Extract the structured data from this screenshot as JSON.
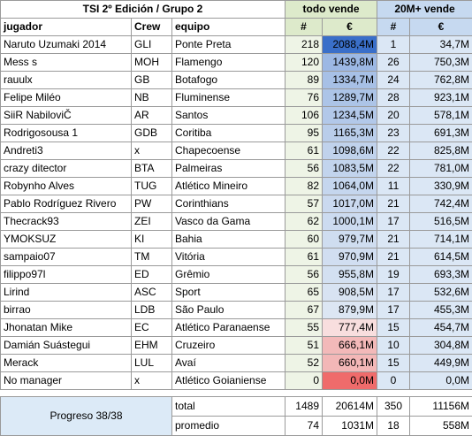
{
  "header": {
    "title": "TSI 2º Edición / Grupo 2",
    "group_todo": "todo vende",
    "group_20m": "20M+ vende",
    "col_jugador": "jugador",
    "col_crew": "Crew",
    "col_equipo": "equipo",
    "col_hash": "#",
    "col_euro": "€"
  },
  "rows": [
    {
      "jugador": "Naruto Uzumaki 2014",
      "crew": "GLI",
      "equipo": "Ponte Preta",
      "count": "218",
      "total": "2088,4M",
      "n20": "1",
      "v20": "34,7M",
      "color": "#3a6fc9"
    },
    {
      "jugador": "Mess s",
      "crew": "MOH",
      "equipo": "Flamengo",
      "count": "120",
      "total": "1439,8M",
      "n20": "26",
      "v20": "750,3M",
      "color": "#9cb8e4"
    },
    {
      "jugador": "rauulx",
      "crew": "GB",
      "equipo": "Botafogo",
      "count": "89",
      "total": "1334,7M",
      "n20": "24",
      "v20": "762,8M",
      "color": "#a7c0e6"
    },
    {
      "jugador": "Felipe Miléo",
      "crew": "NB",
      "equipo": "Fluminense",
      "count": "76",
      "total": "1289,7M",
      "n20": "28",
      "v20": "923,1M",
      "color": "#acc4e7"
    },
    {
      "jugador": "SiiR NabiloviČ",
      "crew": "AR",
      "equipo": "Santos",
      "count": "106",
      "total": "1234,5M",
      "n20": "20",
      "v20": "578,1M",
      "color": "#b2c8e9"
    },
    {
      "jugador": "Rodrigosousa 1",
      "crew": "GDB",
      "equipo": "Coritiba",
      "count": "95",
      "total": "1165,3M",
      "n20": "23",
      "v20": "691,3M",
      "color": "#b9cdea"
    },
    {
      "jugador": "Andreti3",
      "crew": "x",
      "equipo": "Chapecoense",
      "count": "61",
      "total": "1098,6M",
      "n20": "22",
      "v20": "825,8M",
      "color": "#c0d2ec"
    },
    {
      "jugador": "crazy ditector",
      "crew": "BTA",
      "equipo": "Palmeiras",
      "count": "56",
      "total": "1083,5M",
      "n20": "22",
      "v20": "781,0M",
      "color": "#c2d4ed"
    },
    {
      "jugador": "Robynho Alves",
      "crew": "TUG",
      "equipo": "Atlético Mineiro",
      "count": "82",
      "total": "1064,0M",
      "n20": "11",
      "v20": "330,9M",
      "color": "#c5d6ee"
    },
    {
      "jugador": "Pablo Rodríguez Rivero",
      "crew": "PW",
      "equipo": "Corinthians",
      "count": "57",
      "total": "1017,0M",
      "n20": "21",
      "v20": "742,4M",
      "color": "#cad9ef"
    },
    {
      "jugador": "Thecrack93",
      "crew": "ZEI",
      "equipo": "Vasco da Gama",
      "count": "62",
      "total": "1000,1M",
      "n20": "17",
      "v20": "516,5M",
      "color": "#ccdbf0"
    },
    {
      "jugador": "YMOKSUZ",
      "crew": "KI",
      "equipo": "Bahia",
      "count": "60",
      "total": "979,7M",
      "n20": "21",
      "v20": "714,1M",
      "color": "#cfddf0"
    },
    {
      "jugador": "sampaio07",
      "crew": "TM",
      "equipo": "Vitória",
      "count": "61",
      "total": "970,9M",
      "n20": "21",
      "v20": "614,5M",
      "color": "#d1def1"
    },
    {
      "jugador": "filippo97l",
      "crew": "ED",
      "equipo": "Grêmio",
      "count": "56",
      "total": "955,8M",
      "n20": "19",
      "v20": "693,3M",
      "color": "#d3e0f1"
    },
    {
      "jugador": "Lirind",
      "crew": "ASC",
      "equipo": "Sport",
      "count": "65",
      "total": "908,5M",
      "n20": "17",
      "v20": "532,6M",
      "color": "#d8e3f2"
    },
    {
      "jugador": "birrao",
      "crew": "LDB",
      "equipo": "São Paulo",
      "count": "67",
      "total": "879,9M",
      "n20": "17",
      "v20": "455,3M",
      "color": "#dce6f3"
    },
    {
      "jugador": "Jhonatan Mike",
      "crew": "EC",
      "equipo": "Atlético Paranaense",
      "count": "55",
      "total": "777,4M",
      "n20": "15",
      "v20": "454,7M",
      "color": "#f8dede"
    },
    {
      "jugador": "Damián Suástegui",
      "crew": "EHM",
      "equipo": "Cruzeiro",
      "count": "51",
      "total": "666,1M",
      "n20": "10",
      "v20": "304,8M",
      "color": "#f3b9b9"
    },
    {
      "jugador": "Merack",
      "crew": "LUL",
      "equipo": "Avaí",
      "count": "52",
      "total": "660,1M",
      "n20": "15",
      "v20": "449,9M",
      "color": "#f3b7b7"
    },
    {
      "jugador": "No manager",
      "crew": "x",
      "equipo": "Atlético Goianiense",
      "count": "0",
      "total": "0,0M",
      "n20": "0",
      "v20": "0,0M",
      "color": "#ef6b6b"
    }
  ],
  "summary": {
    "progress": "Progreso 38/38",
    "total_label": "total",
    "total_count": "1489",
    "total_value": "20614M",
    "total_n20": "350",
    "total_v20": "11156M",
    "avg_label": "promedio",
    "avg_count": "74",
    "avg_value": "1031M",
    "avg_n20": "18",
    "avg_v20": "558M"
  }
}
